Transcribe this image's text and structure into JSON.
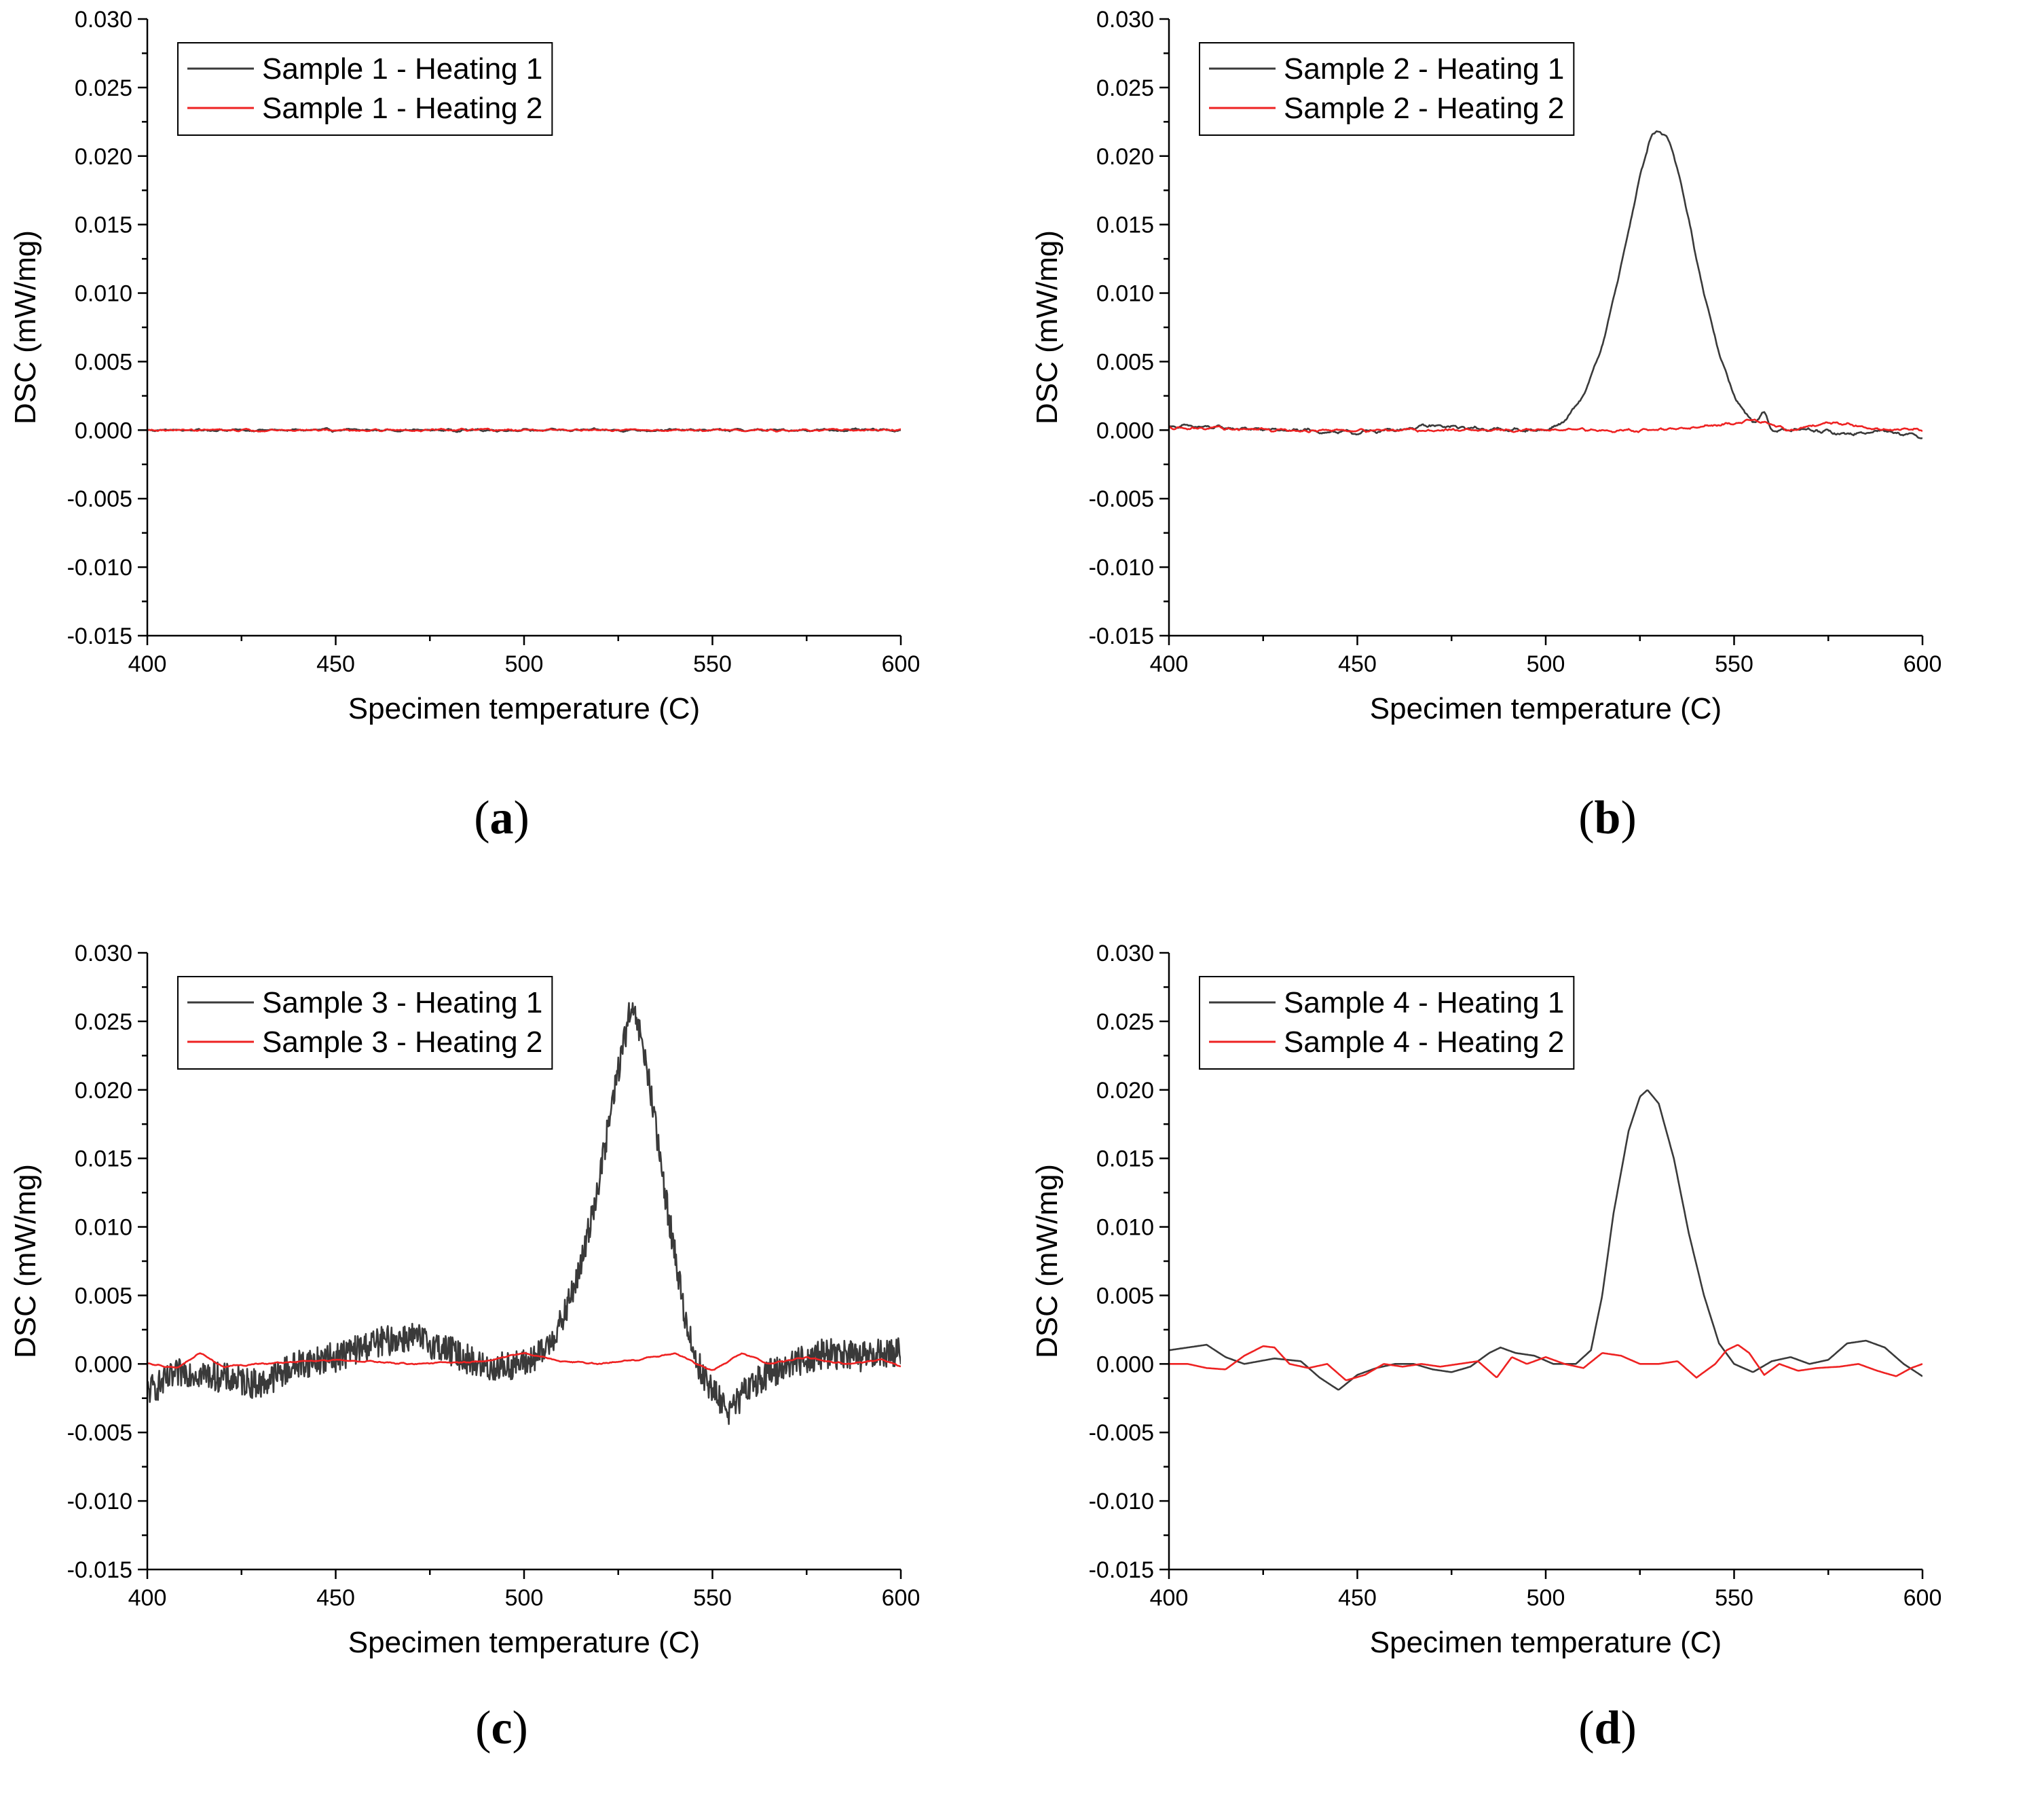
{
  "colors": {
    "heating1": "#3a3a3a",
    "heating2": "#ee2222",
    "axis": "#000000"
  },
  "chart_data": [
    {
      "panel": "a",
      "type": "line",
      "xlabel": "Specimen temperature (C)",
      "ylabel": "DSC (mW/mg)",
      "xlim": [
        400,
        600
      ],
      "ylim": [
        -0.015,
        0.03
      ],
      "xticks": [
        "400",
        "450",
        "500",
        "550",
        "600"
      ],
      "yticks": [
        "0.030",
        "0.025",
        "0.020",
        "0.015",
        "0.010",
        "0.005",
        "0.000",
        "-0.005",
        "-0.010",
        "-0.015"
      ],
      "legend_position": "top-left",
      "series": [
        {
          "name": "Sample 1 - Heating 1",
          "color": "#3a3a3a",
          "noise": 0.00018,
          "smooth": 2,
          "points": [
            [
              400,
              0.0
            ],
            [
              600,
              0.0
            ]
          ]
        },
        {
          "name": "Sample 1 - Heating 2",
          "color": "#ee2222",
          "noise": 0.00015,
          "smooth": 2,
          "points": [
            [
              400,
              0.0
            ],
            [
              600,
              0.0
            ]
          ]
        }
      ]
    },
    {
      "panel": "b",
      "type": "line",
      "xlabel": "Specimen temperature (C)",
      "ylabel": "DSC (mW/mg)",
      "xlim": [
        400,
        600
      ],
      "ylim": [
        -0.015,
        0.03
      ],
      "xticks": [
        "400",
        "450",
        "500",
        "550",
        "600"
      ],
      "yticks": [
        "0.030",
        "0.025",
        "0.020",
        "0.015",
        "0.010",
        "0.005",
        "0.000",
        "-0.005",
        "-0.010",
        "-0.015"
      ],
      "legend_position": "top-left",
      "series": [
        {
          "name": "Sample 2 - Heating 1",
          "color": "#3a3a3a",
          "noise": 0.00028,
          "smooth": 2,
          "points": [
            [
              400,
              0.0003
            ],
            [
              430,
              0.0
            ],
            [
              450,
              -0.0002
            ],
            [
              470,
              0.0003
            ],
            [
              490,
              0.0
            ],
            [
              500,
              0.0
            ],
            [
              505,
              0.0006
            ],
            [
              510,
              0.0025
            ],
            [
              515,
              0.006
            ],
            [
              520,
              0.012
            ],
            [
              525,
              0.0185
            ],
            [
              528,
              0.0215
            ],
            [
              530,
              0.022
            ],
            [
              533,
              0.021
            ],
            [
              536,
              0.018
            ],
            [
              540,
              0.0125
            ],
            [
              545,
              0.0065
            ],
            [
              550,
              0.0025
            ],
            [
              555,
              0.0005
            ],
            [
              558,
              0.0013
            ],
            [
              560,
              0.0
            ],
            [
              570,
              0.0
            ],
            [
              580,
              -0.0003
            ],
            [
              590,
              0.0
            ],
            [
              600,
              -0.0005
            ]
          ]
        },
        {
          "name": "Sample 2 - Heating 2",
          "color": "#ee2222",
          "noise": 0.00022,
          "smooth": 2,
          "points": [
            [
              400,
              0.0002
            ],
            [
              430,
              0.0
            ],
            [
              460,
              0.0
            ],
            [
              490,
              0.0
            ],
            [
              510,
              0.0
            ],
            [
              530,
              0.0
            ],
            [
              545,
              0.0003
            ],
            [
              555,
              0.0008
            ],
            [
              565,
              0.0
            ],
            [
              575,
              0.0006
            ],
            [
              590,
              0.0
            ],
            [
              600,
              0.0
            ]
          ]
        }
      ]
    },
    {
      "panel": "c",
      "type": "line",
      "xlabel": "Specimen temperature (C)",
      "ylabel": "DSC (mW/mg)",
      "xlim": [
        400,
        600
      ],
      "ylim": [
        -0.015,
        0.03
      ],
      "xticks": [
        "400",
        "450",
        "500",
        "550",
        "600"
      ],
      "yticks": [
        "0.030",
        "0.025",
        "0.020",
        "0.015",
        "0.010",
        "0.005",
        "0.000",
        "-0.005",
        "-0.010",
        "-0.015"
      ],
      "legend_position": "top-left",
      "series": [
        {
          "name": "Sample 3 - Heating 1",
          "color": "#3a3a3a",
          "noise": 0.0011,
          "smooth": 0,
          "samples": 1200,
          "points": [
            [
              400,
              -0.002
            ],
            [
              410,
              -0.0005
            ],
            [
              420,
              -0.001
            ],
            [
              430,
              -0.0015
            ],
            [
              440,
              0.0
            ],
            [
              450,
              0.0005
            ],
            [
              460,
              0.0015
            ],
            [
              470,
              0.002
            ],
            [
              480,
              0.001
            ],
            [
              490,
              -0.0003
            ],
            [
              500,
              0.0
            ],
            [
              505,
              0.0008
            ],
            [
              510,
              0.003
            ],
            [
              515,
              0.007
            ],
            [
              520,
              0.0135
            ],
            [
              525,
              0.0215
            ],
            [
              528,
              0.0255
            ],
            [
              530,
              0.025
            ],
            [
              533,
              0.021
            ],
            [
              536,
              0.015
            ],
            [
              540,
              0.008
            ],
            [
              543,
              0.003
            ],
            [
              546,
              0.0
            ],
            [
              550,
              -0.002
            ],
            [
              555,
              -0.0035
            ],
            [
              560,
              -0.0015
            ],
            [
              570,
              0.0
            ],
            [
              580,
              0.0008
            ],
            [
              590,
              0.0005
            ],
            [
              600,
              0.001
            ]
          ]
        },
        {
          "name": "Sample 3 - Heating 2",
          "color": "#ee2222",
          "noise": 0.00012,
          "smooth": 2,
          "points": [
            [
              400,
              0.0
            ],
            [
              408,
              -0.0003
            ],
            [
              414,
              0.0008
            ],
            [
              420,
              -0.0002
            ],
            [
              430,
              0.0
            ],
            [
              450,
              0.0003
            ],
            [
              470,
              0.0
            ],
            [
              490,
              0.0002
            ],
            [
              500,
              0.0008
            ],
            [
              510,
              0.0002
            ],
            [
              520,
              0.0
            ],
            [
              530,
              0.0003
            ],
            [
              540,
              0.0008
            ],
            [
              550,
              -0.0005
            ],
            [
              558,
              0.0008
            ],
            [
              565,
              0.0
            ],
            [
              575,
              0.0005
            ],
            [
              585,
              0.0
            ],
            [
              595,
              0.0003
            ],
            [
              600,
              -0.0002
            ]
          ]
        }
      ]
    },
    {
      "panel": "d",
      "type": "line",
      "xlabel": "Specimen temperature (C)",
      "ylabel": "DSC (mW/mg)",
      "xlim": [
        400,
        600
      ],
      "ylim": [
        -0.015,
        0.03
      ],
      "xticks": [
        "400",
        "450",
        "500",
        "550",
        "600"
      ],
      "yticks": [
        "0.030",
        "0.025",
        "0.020",
        "0.015",
        "0.010",
        "0.005",
        "0.000",
        "-0.005",
        "-0.010",
        "-0.015"
      ],
      "legend_position": "top-left",
      "series": [
        {
          "name": "Sample 4 - Heating 1",
          "color": "#3a3a3a",
          "noise": 0.0,
          "smooth": 0,
          "points": [
            [
              400,
              0.001
            ],
            [
              405,
              0.0012
            ],
            [
              410,
              0.0014
            ],
            [
              415,
              0.0005
            ],
            [
              420,
              0.0
            ],
            [
              428,
              0.0004
            ],
            [
              435,
              0.0002
            ],
            [
              440,
              -0.001
            ],
            [
              445,
              -0.0019
            ],
            [
              450,
              -0.0008
            ],
            [
              455,
              -0.0003
            ],
            [
              460,
              0.0
            ],
            [
              465,
              0.0
            ],
            [
              470,
              -0.0004
            ],
            [
              475,
              -0.0006
            ],
            [
              480,
              -0.0002
            ],
            [
              485,
              0.0008
            ],
            [
              488,
              0.0012
            ],
            [
              492,
              0.0008
            ],
            [
              497,
              0.0006
            ],
            [
              502,
              0.0
            ],
            [
              508,
              0.0
            ],
            [
              512,
              0.001
            ],
            [
              515,
              0.005
            ],
            [
              518,
              0.011
            ],
            [
              522,
              0.017
            ],
            [
              525,
              0.0195
            ],
            [
              527,
              0.02
            ],
            [
              530,
              0.019
            ],
            [
              534,
              0.015
            ],
            [
              538,
              0.0095
            ],
            [
              542,
              0.005
            ],
            [
              546,
              0.0015
            ],
            [
              550,
              0.0
            ],
            [
              555,
              -0.0006
            ],
            [
              560,
              0.0002
            ],
            [
              565,
              0.0005
            ],
            [
              570,
              0.0
            ],
            [
              575,
              0.0003
            ],
            [
              580,
              0.0015
            ],
            [
              585,
              0.0017
            ],
            [
              590,
              0.0012
            ],
            [
              595,
              0.0
            ],
            [
              600,
              -0.0009
            ]
          ]
        },
        {
          "name": "Sample 4 - Heating 2",
          "color": "#ee2222",
          "noise": 0.0,
          "smooth": 0,
          "points": [
            [
              400,
              0.0
            ],
            [
              405,
              0.0
            ],
            [
              410,
              -0.0003
            ],
            [
              415,
              -0.0004
            ],
            [
              420,
              0.0006
            ],
            [
              425,
              0.0013
            ],
            [
              428,
              0.0012
            ],
            [
              432,
              0.0
            ],
            [
              437,
              -0.0003
            ],
            [
              442,
              0.0
            ],
            [
              447,
              -0.0012
            ],
            [
              452,
              -0.0008
            ],
            [
              457,
              0.0
            ],
            [
              462,
              -0.0002
            ],
            [
              467,
              0.0
            ],
            [
              472,
              -0.0002
            ],
            [
              477,
              0.0
            ],
            [
              482,
              0.0002
            ],
            [
              487,
              -0.001
            ],
            [
              491,
              0.0005
            ],
            [
              495,
              0.0
            ],
            [
              500,
              0.0005
            ],
            [
              505,
              0.0
            ],
            [
              510,
              -0.0003
            ],
            [
              515,
              0.0008
            ],
            [
              520,
              0.0006
            ],
            [
              525,
              0.0
            ],
            [
              530,
              0.0
            ],
            [
              535,
              0.0002
            ],
            [
              540,
              -0.001
            ],
            [
              545,
              0.0
            ],
            [
              548,
              0.001
            ],
            [
              551,
              0.0014
            ],
            [
              554,
              0.0008
            ],
            [
              558,
              -0.0008
            ],
            [
              562,
              0.0
            ],
            [
              567,
              -0.0005
            ],
            [
              572,
              -0.0003
            ],
            [
              578,
              -0.0002
            ],
            [
              583,
              0.0
            ],
            [
              588,
              -0.0005
            ],
            [
              593,
              -0.0009
            ],
            [
              597,
              -0.0003
            ],
            [
              600,
              0.0
            ]
          ]
        }
      ]
    }
  ]
}
